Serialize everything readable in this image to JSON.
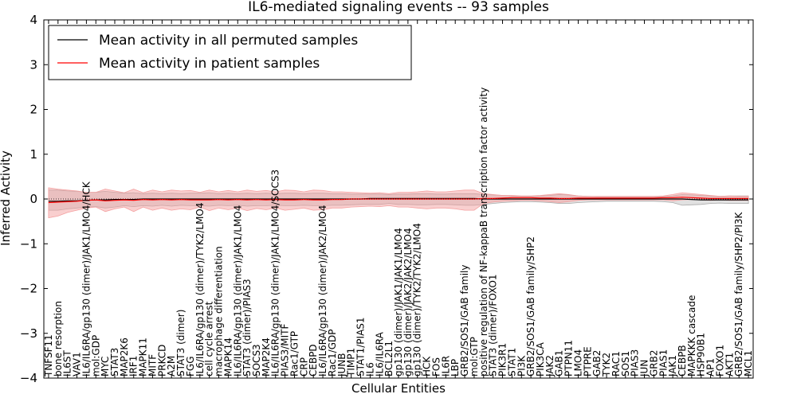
{
  "chart_data": {
    "type": "line",
    "title": "IL6-mediated signaling events -- 93 samples",
    "xlabel": "Cellular Entities",
    "ylabel": "Inferred Activity",
    "ylim": [
      -4,
      4
    ],
    "yticks": [
      -4,
      -3,
      -2,
      -1,
      0,
      1,
      2,
      3,
      4
    ],
    "ytick_labels": [
      "−4",
      "−3",
      "−2",
      "−1",
      "0",
      "1",
      "2",
      "3",
      "4"
    ],
    "legend_position": "top-left",
    "categories": [
      "TNFSF11",
      "bone resorption",
      "IL6ST",
      "VAV1",
      "IL6/IL6RA/gp130 (dimer)/JAK1/LMO4/HCK",
      "mol:GDP",
      "MYC",
      "STAT3",
      "MAP2K6",
      "IRF1",
      "MAPK11",
      "MITF",
      "PRKCD",
      "A2M",
      "STAT3 (dimer)",
      "FGG",
      "IL6/IL6RA/gp130 (dimer)/TYK2/LMO4",
      "cell cycle arrest",
      "macrophage differentiation",
      "MAPK14",
      "IL6/IL6RA/gp130 (dimer)/JAK1/LMO4",
      "STAT3 (dimer)/PIAS3",
      "SOCS3",
      "MAP2K4",
      "IL6/IL6RA/gp130 (dimer)/JAK1/LMO4/SOCS3",
      "PIAS3/MITF",
      "Rac1/GTP",
      "CRP",
      "CEBPD",
      "IL6/IL6RA/gp130 (dimer)/JAK2/LMO4",
      "Rac1/GDP",
      "JUNB",
      "TIMP1",
      "STAT1/PIAS1",
      "IL6",
      "IL6/IL6RA",
      "BCL2L1",
      "gp130 (dimer)/JAK1/JAK1/LMO4",
      "gp130 (dimer)/JAK2/JAK2/LMO4",
      "gp130 (dimer)/TYK2/TYK2/LMO4",
      "HCK",
      "FOS",
      "IL6R",
      "LBP",
      "GRB2/SOS1/GAB family",
      "mol:GTP",
      "positive regulation of NF-kappaB transcription factor activity",
      "STAT3 (dimer)/FOXO1",
      "PIK3R1",
      "STAT1",
      "PI3K",
      "GRB2/SOS1/GAB family/SHP2",
      "PIK3CA",
      "JAK2",
      "GAB1",
      "PTPN11",
      "LMO4",
      "PTPRE",
      "GAB2",
      "TYK2",
      "RAC1",
      "SOS1",
      "PIAS3",
      "JUN",
      "GRB2",
      "PIAS1",
      "JAK1",
      "CEBPB",
      "MAPKKK cascade",
      "HSP90B1",
      "AP1",
      "FOXO1",
      "AKT1",
      "GRB2/SOS1/GAB family/SHP2/PI3K",
      "MCL1"
    ],
    "series": [
      {
        "name": "Mean activity in all permuted samples",
        "color": "#000000",
        "values": [
          -0.05,
          -0.05,
          -0.04,
          -0.04,
          -0.03,
          -0.02,
          -0.02,
          -0.01,
          -0.01,
          -0.01,
          0,
          0,
          0,
          0,
          0,
          0,
          0,
          0,
          0,
          0,
          0,
          0,
          0,
          0,
          0,
          0,
          0,
          0,
          0,
          0,
          0,
          0,
          0,
          0,
          0.01,
          0.01,
          0.01,
          0.01,
          0.01,
          0.01,
          0.01,
          0.01,
          0.01,
          0.01,
          0.01,
          0.01,
          0,
          0,
          0,
          0,
          0,
          0,
          0,
          0,
          0,
          0,
          0,
          0,
          0,
          0,
          0,
          0,
          0,
          0,
          0,
          0,
          0,
          0,
          -0.01,
          -0.02,
          -0.02,
          -0.02,
          -0.02,
          -0.02,
          -0.02
        ],
        "band": {
          "color": "#aaaaaa",
          "lower": [
            -0.25,
            -0.25,
            -0.22,
            -0.2,
            -0.18,
            -0.17,
            -0.2,
            -0.18,
            -0.15,
            -0.17,
            -0.15,
            -0.16,
            -0.14,
            -0.16,
            -0.14,
            -0.15,
            -0.15,
            -0.16,
            -0.14,
            -0.15,
            -0.14,
            -0.16,
            -0.15,
            -0.15,
            -0.14,
            -0.15,
            -0.15,
            -0.14,
            -0.15,
            -0.15,
            -0.14,
            -0.14,
            -0.13,
            -0.12,
            -0.12,
            -0.12,
            -0.1,
            -0.12,
            -0.12,
            -0.13,
            -0.13,
            -0.12,
            -0.12,
            -0.13,
            -0.14,
            -0.14,
            -0.12,
            -0.1,
            -0.08,
            -0.07,
            -0.06,
            -0.06,
            -0.07,
            -0.08,
            -0.1,
            -0.1,
            -0.08,
            -0.07,
            -0.06,
            -0.05,
            -0.05,
            -0.05,
            -0.05,
            -0.05,
            -0.05,
            -0.06,
            -0.08,
            -0.14,
            -0.13,
            -0.12,
            -0.1,
            -0.09,
            -0.1,
            -0.1,
            -0.1
          ],
          "upper": [
            0.2,
            0.2,
            0.18,
            0.17,
            0.15,
            0.15,
            0.17,
            0.15,
            0.13,
            0.14,
            0.12,
            0.13,
            0.12,
            0.13,
            0.12,
            0.13,
            0.13,
            0.14,
            0.12,
            0.13,
            0.12,
            0.13,
            0.12,
            0.13,
            0.12,
            0.13,
            0.13,
            0.12,
            0.13,
            0.13,
            0.12,
            0.12,
            0.11,
            0.11,
            0.11,
            0.11,
            0.1,
            0.11,
            0.11,
            0.12,
            0.12,
            0.11,
            0.11,
            0.12,
            0.12,
            0.12,
            0.1,
            0.09,
            0.08,
            0.07,
            0.06,
            0.06,
            0.07,
            0.08,
            0.1,
            0.09,
            0.07,
            0.06,
            0.05,
            0.05,
            0.05,
            0.05,
            0.05,
            0.05,
            0.05,
            0.05,
            0.07,
            0.1,
            0.09,
            0.08,
            0.07,
            0.06,
            0.07,
            0.07,
            0.07
          ]
        }
      },
      {
        "name": "Mean activity in patient samples",
        "color": "#ff0000",
        "values": [
          -0.08,
          -0.07,
          -0.06,
          -0.05,
          -0.03,
          -0.02,
          -0.04,
          -0.03,
          -0.02,
          -0.03,
          -0.01,
          -0.02,
          -0.01,
          -0.02,
          -0.01,
          -0.02,
          -0.02,
          -0.02,
          -0.01,
          -0.02,
          -0.01,
          -0.02,
          -0.01,
          -0.02,
          -0.01,
          -0.02,
          -0.02,
          -0.01,
          -0.02,
          -0.02,
          -0.01,
          -0.01,
          0,
          0,
          0,
          0,
          0,
          0,
          0,
          0,
          0,
          0,
          0,
          0,
          0,
          0,
          0.01,
          0.01,
          0.02,
          0.03,
          0.03,
          0.03,
          0.02,
          0.02,
          0.01,
          0.01,
          0.02,
          0.02,
          0.02,
          0.02,
          0.02,
          0.02,
          0.02,
          0.02,
          0.02,
          0.03,
          0.03,
          0.04,
          0.03,
          0.02,
          0.01,
          0.01,
          0.01,
          0.01,
          0.01
        ],
        "band": {
          "color": "#f4a0a0",
          "lower": [
            -0.42,
            -0.38,
            -0.3,
            -0.25,
            -0.2,
            -0.18,
            -0.28,
            -0.22,
            -0.18,
            -0.28,
            -0.18,
            -0.25,
            -0.2,
            -0.25,
            -0.22,
            -0.24,
            -0.18,
            -0.26,
            -0.2,
            -0.24,
            -0.2,
            -0.26,
            -0.21,
            -0.24,
            -0.2,
            -0.25,
            -0.23,
            -0.2,
            -0.25,
            -0.24,
            -0.2,
            -0.2,
            -0.18,
            -0.17,
            -0.16,
            -0.17,
            -0.15,
            -0.18,
            -0.18,
            -0.2,
            -0.22,
            -0.2,
            -0.2,
            -0.22,
            -0.25,
            -0.25,
            -0.1,
            -0.07,
            -0.05,
            -0.04,
            -0.03,
            -0.03,
            -0.04,
            -0.06,
            -0.08,
            -0.06,
            -0.03,
            -0.02,
            -0.02,
            -0.02,
            -0.02,
            -0.02,
            -0.02,
            -0.02,
            -0.02,
            -0.02,
            -0.04,
            -0.02,
            -0.01,
            -0.02,
            -0.03,
            -0.02,
            -0.03,
            -0.03,
            -0.03
          ],
          "upper": [
            0.25,
            0.22,
            0.2,
            0.18,
            0.15,
            0.15,
            0.22,
            0.18,
            0.14,
            0.22,
            0.14,
            0.2,
            0.16,
            0.2,
            0.18,
            0.19,
            0.15,
            0.2,
            0.16,
            0.19,
            0.16,
            0.2,
            0.17,
            0.19,
            0.16,
            0.2,
            0.19,
            0.16,
            0.2,
            0.19,
            0.16,
            0.16,
            0.15,
            0.14,
            0.13,
            0.14,
            0.12,
            0.15,
            0.15,
            0.16,
            0.18,
            0.16,
            0.16,
            0.18,
            0.2,
            0.2,
            0.12,
            0.1,
            0.08,
            0.08,
            0.07,
            0.07,
            0.08,
            0.1,
            0.12,
            0.1,
            0.07,
            0.06,
            0.06,
            0.06,
            0.06,
            0.06,
            0.06,
            0.06,
            0.06,
            0.07,
            0.1,
            0.14,
            0.12,
            0.1,
            0.08,
            0.06,
            0.07,
            0.06,
            0.06
          ]
        }
      }
    ]
  }
}
